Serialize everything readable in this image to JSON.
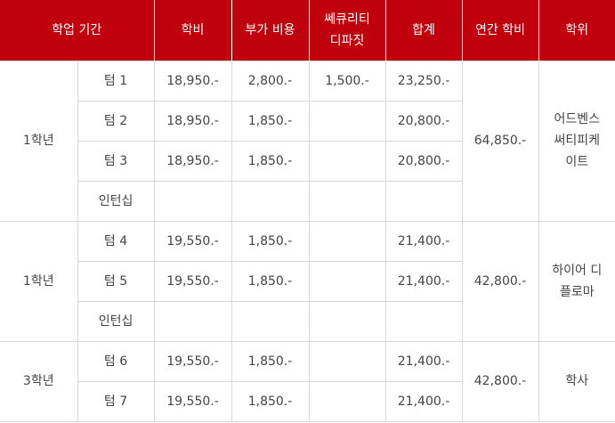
{
  "header": {
    "period": "학업 기간",
    "tuition": "학비",
    "additional": "부가 비용",
    "deposit_line1": "쎄큐리티",
    "deposit_line2": "디파짓",
    "total": "합계",
    "annual": "연간 학비",
    "degree": "학위"
  },
  "groups": [
    {
      "year": "1학년",
      "annual": "64,850.-",
      "degree_line1": "어드벤스",
      "degree_line2": "써티피케",
      "degree_line3": "이트",
      "rows": [
        {
          "term": "텀 1",
          "tuition": "18,950.-",
          "additional": "2,800.-",
          "deposit": "1,500.-",
          "total": "23,250.-"
        },
        {
          "term": "텀 2",
          "tuition": "18,950.-",
          "additional": "1,850.-",
          "deposit": "",
          "total": "20,800.-"
        },
        {
          "term": "텀 3",
          "tuition": "18,950.-",
          "additional": "1,850.-",
          "deposit": "",
          "total": "20,800.-"
        },
        {
          "term": "인턴십",
          "tuition": "",
          "additional": "",
          "deposit": "",
          "total": ""
        }
      ]
    },
    {
      "year": "1학년",
      "annual": "42,800.-",
      "degree_line1": "하이어 디",
      "degree_line2": "플로마",
      "rows": [
        {
          "term": "텀 4",
          "tuition": "19,550.-",
          "additional": "1,850.-",
          "deposit": "",
          "total": "21,400.-"
        },
        {
          "term": "텀 5",
          "tuition": "19,550.-",
          "additional": "1,850.-",
          "deposit": "",
          "total": "21,400.-"
        },
        {
          "term": "인턴십",
          "tuition": "",
          "additional": "",
          "deposit": "",
          "total": ""
        }
      ]
    },
    {
      "year": "3학년",
      "annual": "42,800.-",
      "degree_line1": "학사",
      "rows": [
        {
          "term": "텀 6",
          "tuition": "19,550.-",
          "additional": "1,850.-",
          "deposit": "",
          "total": "21,400.-"
        },
        {
          "term": "텀 7",
          "tuition": "19,550.-",
          "additional": "1,850.-",
          "deposit": "",
          "total": "21,400.-"
        }
      ]
    }
  ]
}
